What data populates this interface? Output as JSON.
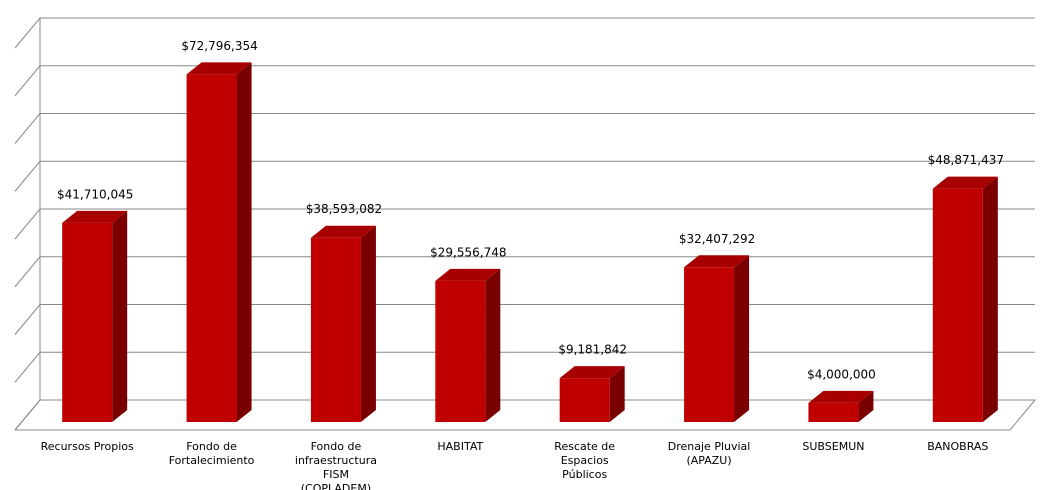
{
  "chart_data": {
    "type": "bar3d",
    "categories": [
      "Recursos Propios",
      "Fondo de Fortalecimiento",
      "Fondo de infraestructura FISM (COPLADEM)",
      "HABITAT",
      "Rescate de Espacios Públicos",
      "Drenaje Pluvial (APAZU)",
      "SUBSEMUN",
      "BANOBRAS"
    ],
    "values": [
      41710045,
      72796354,
      38593082,
      29556748,
      9181842,
      32407292,
      4000000,
      48871437
    ],
    "value_labels": [
      "$41,710,045",
      "$72,796,354",
      "$38,593,082",
      "$29,556,748",
      "$9,181,842",
      "$32,407,292",
      "$4,000,000",
      "$48,871,437"
    ],
    "color": "#c00000",
    "ylim": [
      0,
      80000000
    ],
    "yticks": [
      0,
      10000000,
      20000000,
      30000000,
      40000000,
      50000000,
      60000000,
      70000000,
      80000000
    ],
    "grid": true
  }
}
